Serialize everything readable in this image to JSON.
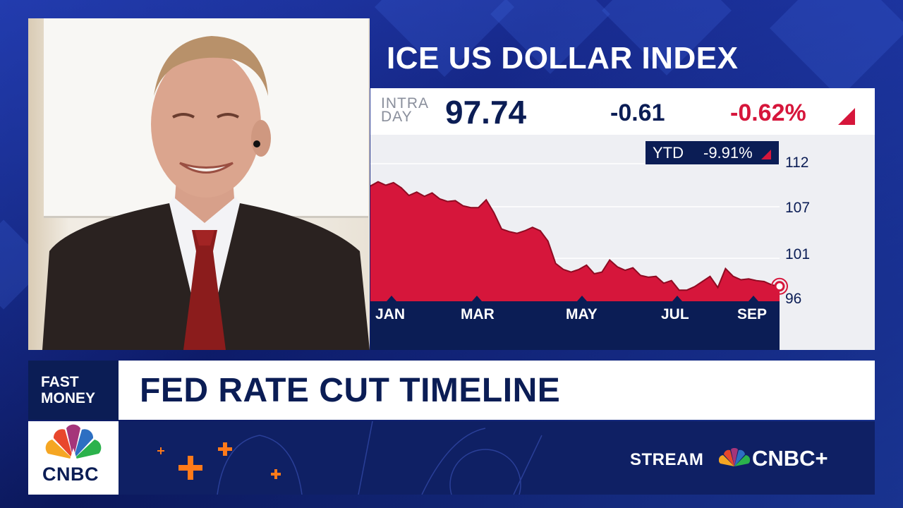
{
  "chart_title": "ICE US DOLLAR INDEX",
  "quote": {
    "intra_line1": "INTRA",
    "intra_line2": "DAY",
    "price": "97.74",
    "change": "-0.61",
    "change_pct": "-0.62%",
    "ytd_label": "YTD",
    "ytd_value": "-9.91%"
  },
  "chart_data": {
    "type": "area",
    "x_tick_labels": [
      "JAN",
      "MAR",
      "MAY",
      "JUL",
      "SEP"
    ],
    "y_tick_labels": [
      "112",
      "107",
      "101",
      "96"
    ],
    "ylim": [
      96,
      112
    ],
    "series": [
      {
        "color": "#d6163b",
        "values": [
          109.4,
          109.9,
          109.5,
          109.8,
          109.2,
          108.3,
          108.7,
          108.2,
          108.6,
          107.9,
          107.6,
          107.7,
          107.1,
          106.9,
          106.9,
          107.8,
          106.3,
          104.4,
          104.1,
          103.9,
          104.2,
          104.6,
          104.2,
          103.0,
          100.4,
          99.7,
          99.4,
          99.7,
          100.2,
          99.2,
          99.4,
          100.8,
          100.0,
          99.6,
          99.9,
          99.0,
          98.8,
          98.9,
          98.1,
          98.4,
          97.3,
          97.3,
          97.7,
          98.3,
          98.9,
          97.6,
          99.8,
          98.9,
          98.5,
          98.6,
          98.4,
          98.3,
          97.9,
          97.74
        ],
        "color_fill": "#d6163b"
      }
    ]
  },
  "show": {
    "name_line1": "FAST",
    "name_line2": "MONEY"
  },
  "headline": "FED RATE CUT TIMELINE",
  "network": {
    "logo_text": "CNBC",
    "stream_label": "STREAM",
    "service": "CNBC+"
  },
  "colors": {
    "navy": "#0b1d55",
    "down_red": "#d6163b",
    "accent_orange": "#ff7a1a"
  }
}
